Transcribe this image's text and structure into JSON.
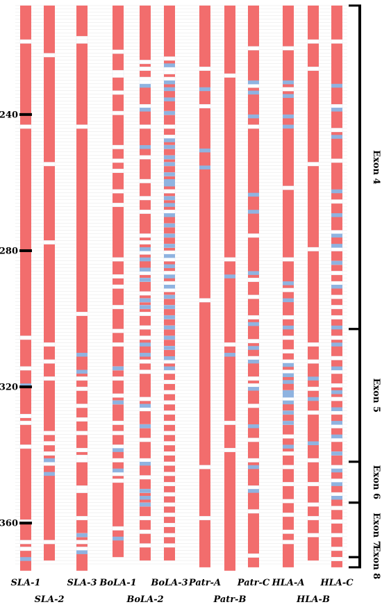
{
  "chart_data": {
    "type": "heatmap",
    "y_ticks": [
      "240",
      "280",
      "320",
      "360"
    ],
    "columns": [
      {
        "name": "SLA-1",
        "row": 1,
        "end": 373,
        "light": [
          218,
          243,
          305,
          314,
          328,
          330,
          337,
          359,
          365,
          367
        ],
        "blue": [
          319,
          370
        ]
      },
      {
        "name": "SLA-2",
        "row": 2,
        "end": 370,
        "light": [
          222,
          254,
          277,
          307,
          312,
          317,
          333,
          336,
          339,
          342,
          365
        ],
        "blue": [
          341,
          345
        ]
      },
      {
        "name": "SLA-3",
        "row": 1,
        "end": 373,
        "light": [
          217,
          218,
          243,
          298,
          317,
          320,
          325,
          329,
          333,
          338,
          340,
          341,
          349,
          350,
          358,
          363,
          365,
          367
        ],
        "blue": [
          310,
          315,
          363,
          368
        ]
      },
      {
        "name": "BoLA-1",
        "row": 1,
        "end": 369,
        "light": [
          221,
          227,
          228,
          233,
          239,
          249,
          253,
          256,
          262,
          266,
          282,
          287,
          290,
          296,
          303,
          307,
          314,
          317,
          322,
          324,
          330,
          333,
          337,
          341,
          345,
          347,
          361
        ],
        "blue": [
          314,
          324,
          338,
          344,
          364
        ]
      },
      {
        "name": "BoLA-2",
        "row": 2,
        "end": 370,
        "light": [
          224,
          226,
          229,
          230,
          237,
          243,
          252,
          259,
          264,
          268,
          275,
          277,
          280,
          286,
          288,
          292,
          294,
          296,
          298,
          302,
          305,
          312,
          315,
          323,
          326,
          331,
          335,
          341,
          346,
          350,
          354,
          358,
          362,
          366
        ],
        "blue": [
          231,
          238,
          249,
          279,
          282,
          285,
          288,
          294,
          296,
          307,
          310,
          325,
          331,
          342,
          350,
          352,
          354
        ]
      },
      {
        "name": "BoLA-3",
        "row": 1,
        "end": 370,
        "light": [
          223,
          226,
          227,
          229,
          239,
          243,
          246,
          249,
          252,
          254,
          257,
          262,
          264,
          268,
          272,
          275,
          278,
          280,
          282,
          286,
          289,
          291,
          293,
          296,
          299,
          302,
          305,
          308,
          312,
          315,
          318,
          321,
          324,
          327,
          330,
          333,
          336,
          339,
          342,
          345,
          348,
          351,
          354,
          357,
          360,
          363,
          366
        ],
        "blue": [
          225,
          230,
          232,
          235,
          239,
          247,
          249,
          252,
          254,
          257,
          259,
          260,
          264,
          266,
          269,
          272,
          275,
          278,
          281,
          284,
          287,
          290,
          293,
          296,
          299,
          302,
          305,
          308,
          311,
          314
        ]
      },
      {
        "name": "Patr-A",
        "row": 1,
        "end": 372,
        "light": [
          226,
          237,
          294,
          343,
          358
        ],
        "blue": [
          232,
          250,
          255
        ]
      },
      {
        "name": "Patr-B",
        "row": 2,
        "end": 373,
        "light": [
          228,
          282,
          307,
          330,
          338
        ],
        "blue": [
          287,
          310
        ]
      },
      {
        "name": "Patr-C",
        "row": 1,
        "end": 372,
        "light": [
          220,
          231,
          243,
          275,
          288,
          293,
          299,
          306,
          311,
          317,
          319,
          325,
          335,
          341,
          349,
          356,
          369
        ],
        "blue": [
          230,
          233,
          240,
          263,
          268,
          286,
          301,
          308,
          312,
          320,
          331,
          343,
          350
        ]
      },
      {
        "name": "HLA-A",
        "row": 1,
        "end": 372,
        "light": [
          220,
          232,
          261,
          282,
          291,
          299,
          305,
          309,
          312,
          315,
          321,
          323,
          327,
          330,
          334,
          339,
          343,
          348,
          353,
          357,
          362,
          365
        ],
        "blue": [
          230,
          234,
          240,
          243,
          289,
          294,
          302,
          313,
          316,
          318,
          321,
          322,
          324,
          327,
          330,
          337
        ]
      },
      {
        "name": "HLA-B",
        "row": 2,
        "end": 370,
        "light": [
          218,
          226,
          254,
          279,
          307,
          312,
          320,
          327,
          341,
          348,
          354,
          358,
          363
        ],
        "blue": [
          317,
          323,
          336
        ]
      },
      {
        "name": "HLA-C",
        "row": 1,
        "end": 372,
        "light": [
          218,
          237,
          244,
          253,
          265,
          274,
          279,
          283,
          286,
          289,
          293,
          296,
          299,
          305,
          311,
          315,
          319,
          323,
          327,
          331,
          335,
          339,
          343,
          347,
          351,
          355,
          359,
          363,
          367,
          370
        ],
        "blue": [
          231,
          238,
          246,
          262,
          269,
          275,
          278,
          283,
          290,
          302,
          307,
          314,
          321,
          326,
          330,
          334,
          339,
          344,
          348,
          352
        ]
      }
    ],
    "exons": [
      {
        "label": "Exon 4",
        "start": 208,
        "end": 302
      },
      {
        "label": "Exon 5",
        "start": 303,
        "end": 341
      },
      {
        "label": "Exon 6",
        "start": 342,
        "end": 353
      },
      {
        "label": "Exon 7",
        "start": 354,
        "end": 369
      },
      {
        "label": "Exon 8",
        "start": 370,
        "end": 372
      }
    ]
  }
}
